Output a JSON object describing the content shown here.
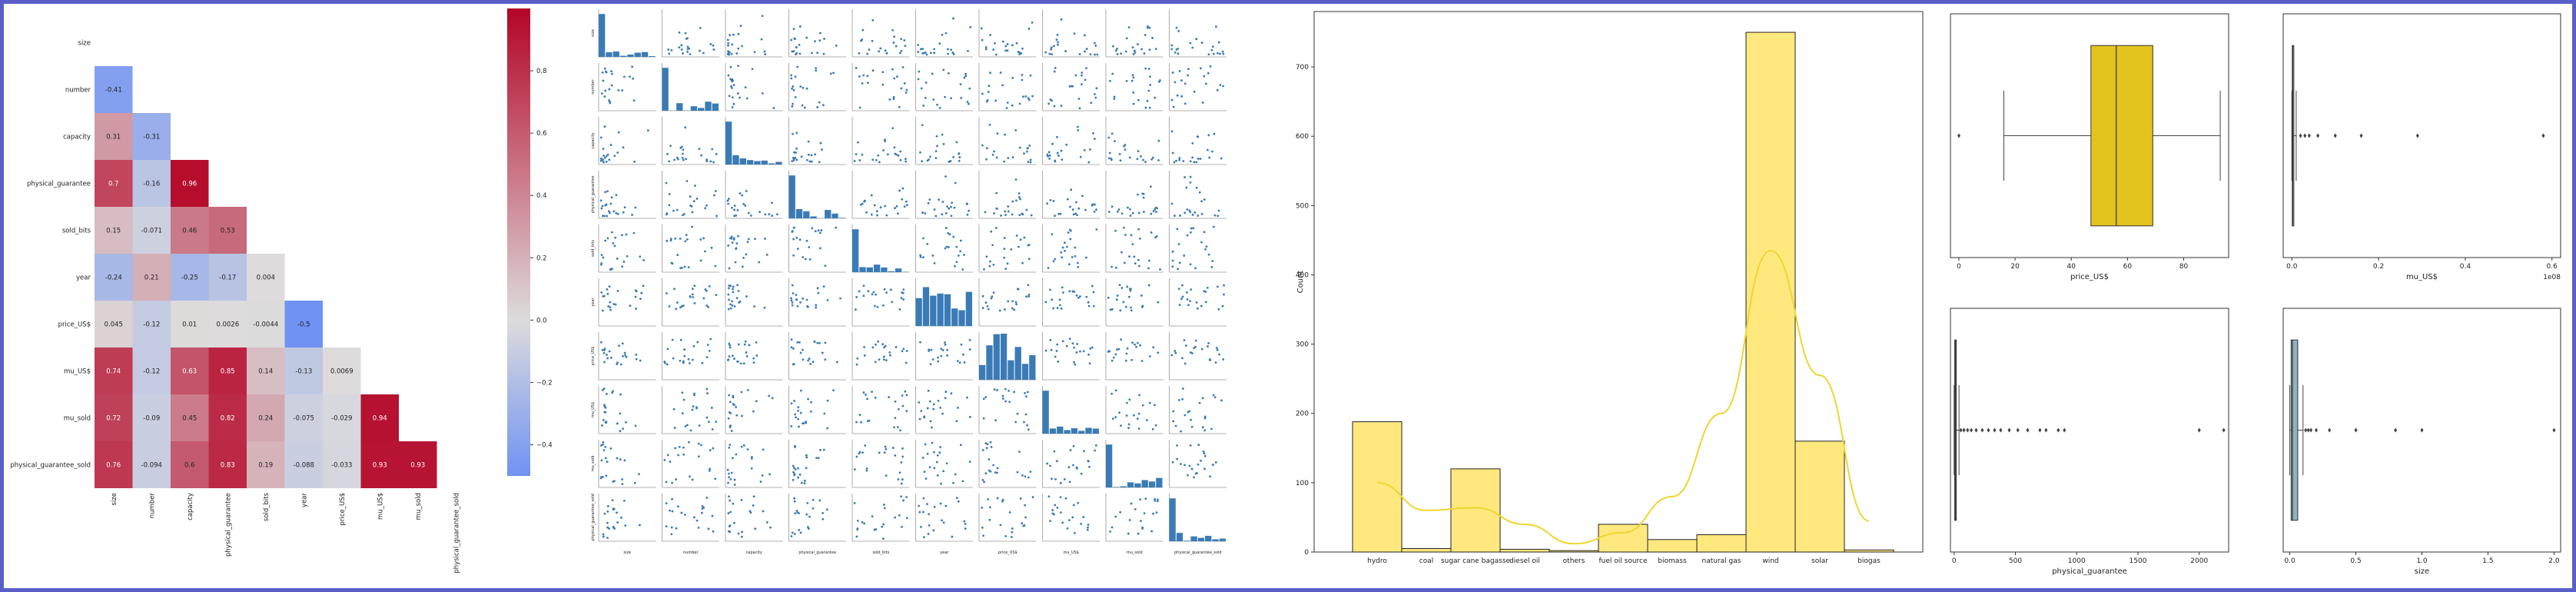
{
  "colors": {
    "border": "#5a5fc8",
    "heat_low": "#6f92f3",
    "heat_mid": "#dddcdc",
    "heat_high": "#b40426",
    "scatter": "#3a7bb5",
    "hist_fill": "#ffe97f",
    "kde_line": "#f0d530",
    "box_price": "#e3c31d",
    "box_size": "#8fb3c4"
  },
  "chart_data": [
    {
      "type": "heatmap",
      "variables": [
        "size",
        "number",
        "capacity",
        "physical_guarantee",
        "sold_bits",
        "year",
        "price_US$",
        "mu_US$",
        "mu_sold",
        "physical_guarantee_sold"
      ],
      "x_tick_labels": [
        "size",
        "number",
        "capacity",
        "physical_guarantee",
        "sold_bits",
        "year",
        "price_US$",
        "mu_US$",
        "mu_sold",
        "physical_guarantee_sold"
      ],
      "y_tick_labels": [
        "size",
        "number",
        "capacity",
        "physical_guarantee",
        "sold_bits",
        "year",
        "price_US$",
        "mu_US$",
        "mu_sold",
        "physical_guarantee_sold"
      ],
      "rows": [
        [],
        [
          -0.41
        ],
        [
          0.31,
          -0.31
        ],
        [
          0.7,
          -0.16,
          0.96
        ],
        [
          0.15,
          -0.071,
          0.46,
          0.53
        ],
        [
          -0.24,
          0.21,
          -0.25,
          -0.17,
          0.004
        ],
        [
          0.045,
          -0.12,
          0.01,
          0.0026,
          -0.0044,
          -0.5
        ],
        [
          0.74,
          -0.12,
          0.63,
          0.85,
          0.14,
          -0.13,
          0.0069
        ],
        [
          0.72,
          -0.09,
          0.45,
          0.82,
          0.24,
          -0.075,
          -0.029,
          0.94
        ],
        [
          0.76,
          -0.094,
          0.6,
          0.83,
          0.19,
          -0.088,
          -0.033,
          0.93,
          0.93
        ]
      ],
      "colorbar": {
        "min": -0.5,
        "max": 1.0,
        "ticks": [
          "0.8",
          "0.6",
          "0.4",
          "0.2",
          "0.0",
          "−0.2",
          "−0.4"
        ]
      }
    },
    {
      "type": "scatter",
      "kind": "pairplot",
      "variables": [
        "size",
        "number",
        "capacity",
        "physical_guarantee",
        "sold_bits",
        "year",
        "price_US$",
        "mu_US$",
        "mu_sold",
        "physical_guarantee_sold"
      ]
    },
    {
      "type": "bar",
      "kind": "histogram",
      "categories": [
        "hydro",
        "coal",
        "sugar cane bagasse",
        "diesel oil",
        "others",
        "fuel oil source",
        "biomass",
        "natural gas",
        "wind",
        "solar",
        "biogas"
      ],
      "values": [
        188,
        5,
        120,
        4,
        2,
        40,
        18,
        25,
        750,
        160,
        3
      ],
      "kde": [
        100,
        60,
        64,
        40,
        12,
        28,
        80,
        200,
        435,
        255,
        45
      ],
      "xlabel": "",
      "ylabel": "Count",
      "ylim": [
        0,
        780
      ],
      "yticks": [
        0,
        100,
        200,
        300,
        400,
        500,
        600,
        700
      ]
    },
    {
      "type": "box",
      "xlabel": "price_US$",
      "xlim": [
        -3,
        96
      ],
      "xticks": [
        0,
        20,
        40,
        60,
        80
      ],
      "whisker_low": 16,
      "q1": 47,
      "median": 56,
      "q3": 69,
      "whisker_high": 93,
      "outliers": [
        0
      ]
    },
    {
      "type": "box",
      "xlabel": "mu_US$",
      "scale_label": "1e08",
      "xlim": [
        -0.02,
        0.62
      ],
      "xticks": [
        "0.0",
        "0.2",
        "0.4",
        "0.6"
      ],
      "xtick_values": [
        0,
        0.2,
        0.4,
        0.6
      ],
      "whisker_low": 0,
      "q1": 0.001,
      "median": 0.002,
      "q3": 0.004,
      "whisker_high": 0.01,
      "outliers": [
        0.02,
        0.03,
        0.04,
        0.06,
        0.1,
        0.16,
        0.29,
        0.58
      ]
    },
    {
      "type": "box",
      "xlabel": "physical_guarantee",
      "xlim": [
        -30,
        2240
      ],
      "xticks": [
        0,
        500,
        1000,
        1500,
        2000
      ],
      "whisker_low": 0,
      "q1": 5,
      "median": 10,
      "q3": 18,
      "whisker_high": 40,
      "outliers": [
        55,
        80,
        110,
        140,
        180,
        230,
        280,
        330,
        380,
        450,
        520,
        600,
        700,
        750,
        850,
        900,
        2000,
        2200
      ]
    },
    {
      "type": "box",
      "xlabel": "size",
      "xlim": [
        -0.05,
        2.05
      ],
      "xticks": [
        "0.0",
        "0.5",
        "1.0",
        "1.5",
        "2.0"
      ],
      "xtick_values": [
        0,
        0.5,
        1.0,
        1.5,
        2.0
      ],
      "whisker_low": 0.0,
      "q1": 0.01,
      "median": 0.02,
      "q3": 0.06,
      "whisker_high": 0.1,
      "outliers": [
        0.12,
        0.14,
        0.16,
        0.2,
        0.3,
        0.5,
        0.8,
        1.0,
        2.0
      ]
    }
  ]
}
